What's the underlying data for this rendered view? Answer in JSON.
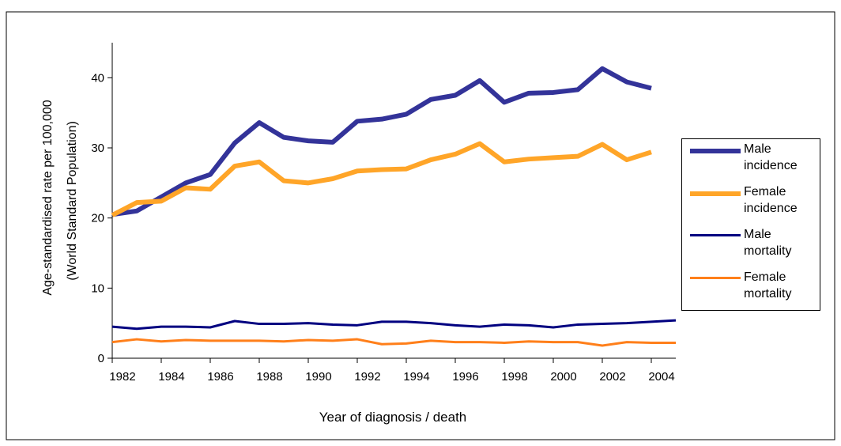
{
  "chart_data": {
    "type": "line",
    "y_label": [
      "Age-standardised rate per 100,000",
      "(World Standard Population)"
    ],
    "x_label": "Year of diagnosis / death",
    "x": [
      1982,
      1983,
      1984,
      1985,
      1986,
      1987,
      1988,
      1989,
      1990,
      1991,
      1992,
      1993,
      1994,
      1995,
      1996,
      1997,
      1998,
      1999,
      2000,
      2001,
      2002,
      2003,
      2004,
      2005
    ],
    "series": [
      {
        "name": "Male incidence",
        "color": "#333399",
        "width": 6,
        "values": [
          20.5,
          21.0,
          23.0,
          25.0,
          26.2,
          30.7,
          33.6,
          31.5,
          31.0,
          30.8,
          33.8,
          34.1,
          34.8,
          36.9,
          37.5,
          39.6,
          36.5,
          37.8,
          37.9,
          38.3,
          41.3,
          39.4,
          38.5,
          null
        ]
      },
      {
        "name": "Female incidence",
        "color": "#ffa528",
        "width": 6,
        "values": [
          20.4,
          22.2,
          22.4,
          24.3,
          24.1,
          27.4,
          28.0,
          25.3,
          25.0,
          25.6,
          26.7,
          26.9,
          27.0,
          28.3,
          29.1,
          30.6,
          28.0,
          28.4,
          28.6,
          28.8,
          30.5,
          28.3,
          29.4,
          null
        ]
      },
      {
        "name": "Male mortality",
        "color": "#000080",
        "width": 3,
        "values": [
          4.5,
          4.2,
          4.5,
          4.5,
          4.4,
          5.3,
          4.9,
          4.9,
          5.0,
          4.8,
          4.7,
          5.2,
          5.2,
          5.0,
          4.7,
          4.5,
          4.8,
          4.7,
          4.4,
          4.8,
          4.9,
          5.0,
          5.2,
          5.4
        ]
      },
      {
        "name": "Female mortality",
        "color": "#ff7f1a",
        "width": 3,
        "values": [
          2.3,
          2.7,
          2.4,
          2.6,
          2.5,
          2.5,
          2.5,
          2.4,
          2.6,
          2.5,
          2.7,
          2.0,
          2.1,
          2.5,
          2.3,
          2.3,
          2.2,
          2.4,
          2.3,
          2.3,
          1.8,
          2.3,
          2.2,
          2.2
        ]
      }
    ],
    "xlim": [
      1982,
      2005
    ],
    "xticks": [
      1982,
      1984,
      1986,
      1988,
      1990,
      1992,
      1994,
      1996,
      1998,
      2000,
      2002,
      2004
    ],
    "ylim": [
      0,
      45
    ],
    "yticks": [
      0,
      10,
      20,
      30,
      40
    ],
    "legend": "right"
  }
}
